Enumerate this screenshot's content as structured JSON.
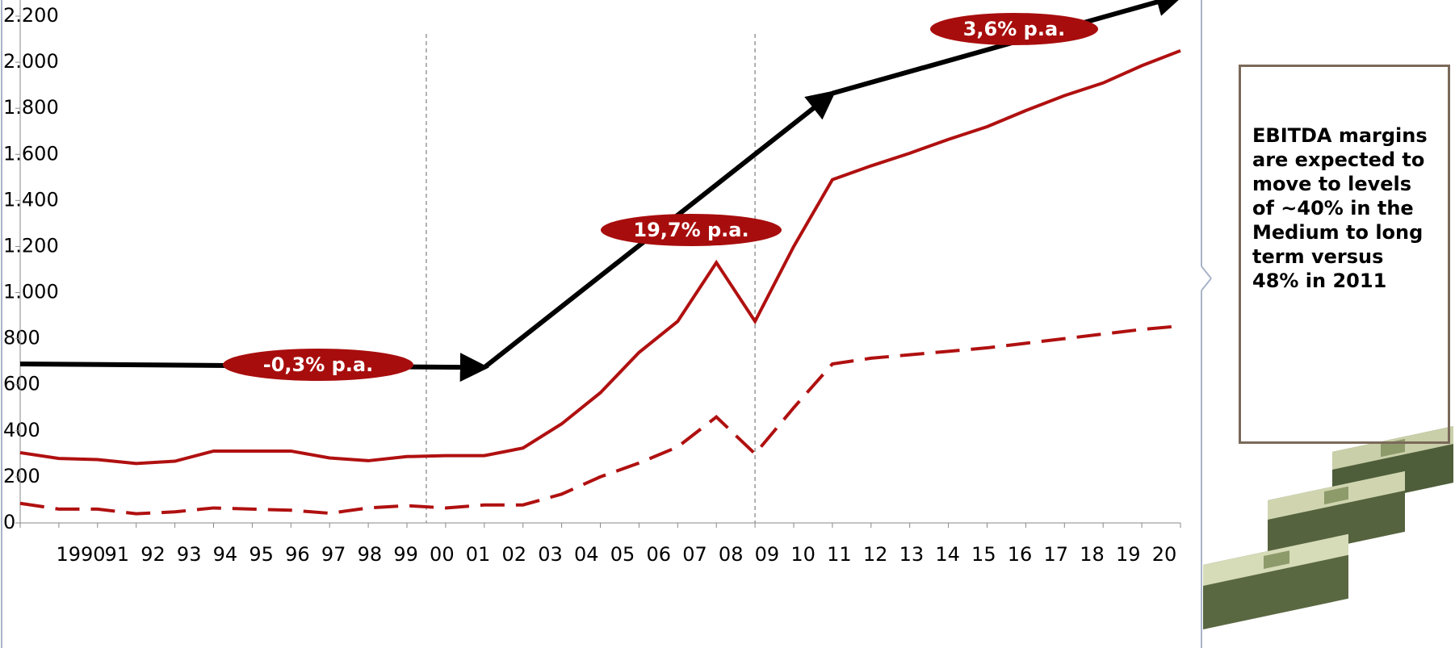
{
  "chart_data": {
    "type": "line",
    "categories": [
      "1990",
      "91",
      "92",
      "93",
      "94",
      "95",
      "96",
      "97",
      "98",
      "99",
      "00",
      "01",
      "02",
      "03",
      "04",
      "05",
      "06",
      "07",
      "08",
      "09",
      "10",
      "11",
      "12",
      "13",
      "14",
      "15",
      "16",
      "17",
      "18",
      "19",
      "20"
    ],
    "ylim": [
      0,
      2200
    ],
    "yticks": [
      0,
      200,
      400,
      600,
      800,
      {
        "value": 1000,
        "label": "1.000"
      },
      {
        "value": 1200,
        "label": "1.200"
      },
      {
        "value": 1400,
        "label": "1.400"
      },
      {
        "value": 1600,
        "label": "1.600"
      },
      {
        "value": 1800,
        "label": "1.800"
      },
      {
        "value": 2000,
        "label": "2.000"
      },
      {
        "value": 2200,
        "label": "2.200"
      }
    ],
    "series": [
      {
        "color": "#b01010",
        "dashed": false,
        "values": [
          305,
          280,
          275,
          258,
          268,
          312,
          312,
          312,
          282,
          270,
          288,
          292,
          292,
          325,
          430,
          565,
          740,
          875,
          1130,
          875,
          1200,
          1490,
          1550,
          1605,
          1665,
          1720,
          1790,
          1855,
          1910,
          1985,
          2050
        ]
      },
      {
        "color": "#b01010",
        "dashed": true,
        "values": [
          85,
          60,
          60,
          40,
          48,
          65,
          60,
          55,
          42,
          65,
          75,
          65,
          78,
          78,
          125,
          200,
          260,
          330,
          460,
          300,
          500,
          690,
          715,
          730,
          745,
          760,
          780,
          800,
          820,
          840,
          855
        ]
      }
    ],
    "trend_color": "#000000",
    "trends": [
      {
        "label": "-0,3% p.a.",
        "x": [
          "1990",
          "02"
        ],
        "values": [
          690,
          675
        ]
      },
      {
        "label": "19,7% p.a.",
        "x": [
          "02",
          "11"
        ],
        "values": [
          675,
          1865
        ]
      },
      {
        "label": "3,6% p.a.",
        "x": [
          "11",
          "20"
        ],
        "values": [
          1865,
          2290
        ]
      }
    ],
    "annotation": "EBITDA margins are expected to move to levels of ~40% in the Medium to long term versus 48% in 2011"
  }
}
